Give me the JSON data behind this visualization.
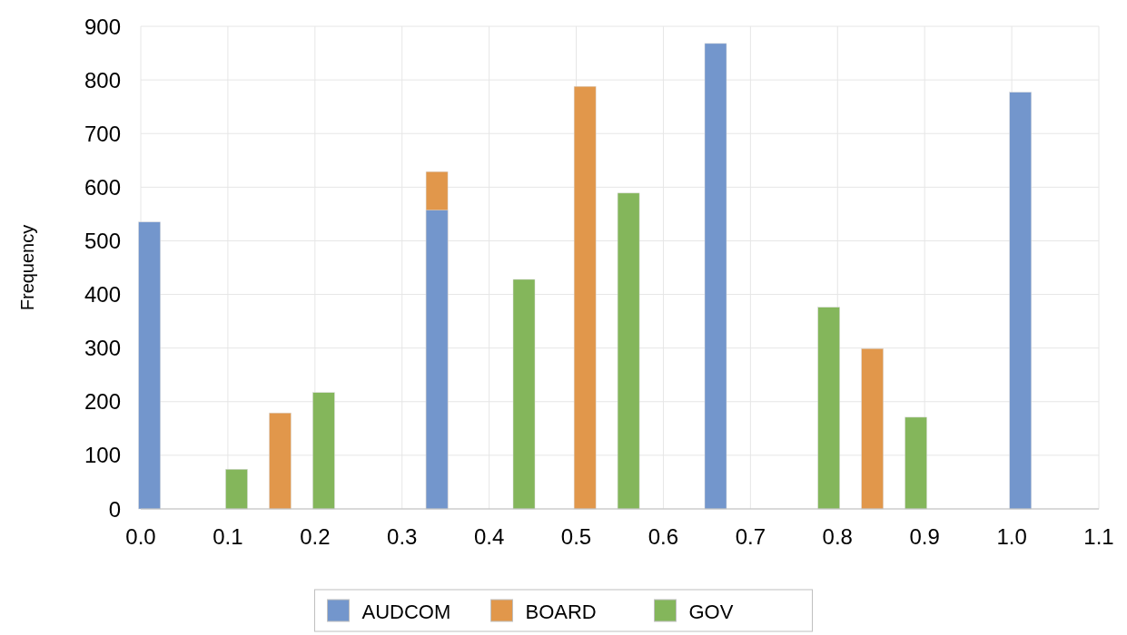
{
  "chart_data": {
    "type": "bar",
    "ylabel": "Frequency",
    "xlim": [
      0,
      1.1
    ],
    "xticks": [
      {
        "value": 0,
        "label": "0.0"
      },
      0.1,
      0.2,
      0.3,
      0.4,
      0.5,
      0.6,
      0.7,
      0.8,
      0.9,
      {
        "value": 1,
        "label": "1.0"
      },
      1.1
    ],
    "ylim": [
      0,
      900
    ],
    "yticks": [
      0,
      100,
      200,
      300,
      400,
      500,
      600,
      700,
      800,
      900
    ],
    "grid": true,
    "legend": "bottom",
    "series": [
      {
        "name": "AUDCOM",
        "color": "#7396cc",
        "x": [
          0.01,
          0.34,
          0.66,
          1.01
        ],
        "values": [
          535,
          557,
          868,
          777
        ]
      },
      {
        "name": "BOARD",
        "color": "#e1974b",
        "x": [
          0.16,
          0.34,
          0.51,
          0.84
        ],
        "values": [
          179,
          629,
          788,
          299
        ]
      },
      {
        "name": "GOV",
        "color": "#84b65b",
        "x": [
          0.11,
          0.21,
          0.44,
          0.56,
          0.79,
          0.89
        ],
        "values": [
          74,
          217,
          428,
          589,
          376,
          171
        ]
      }
    ]
  }
}
